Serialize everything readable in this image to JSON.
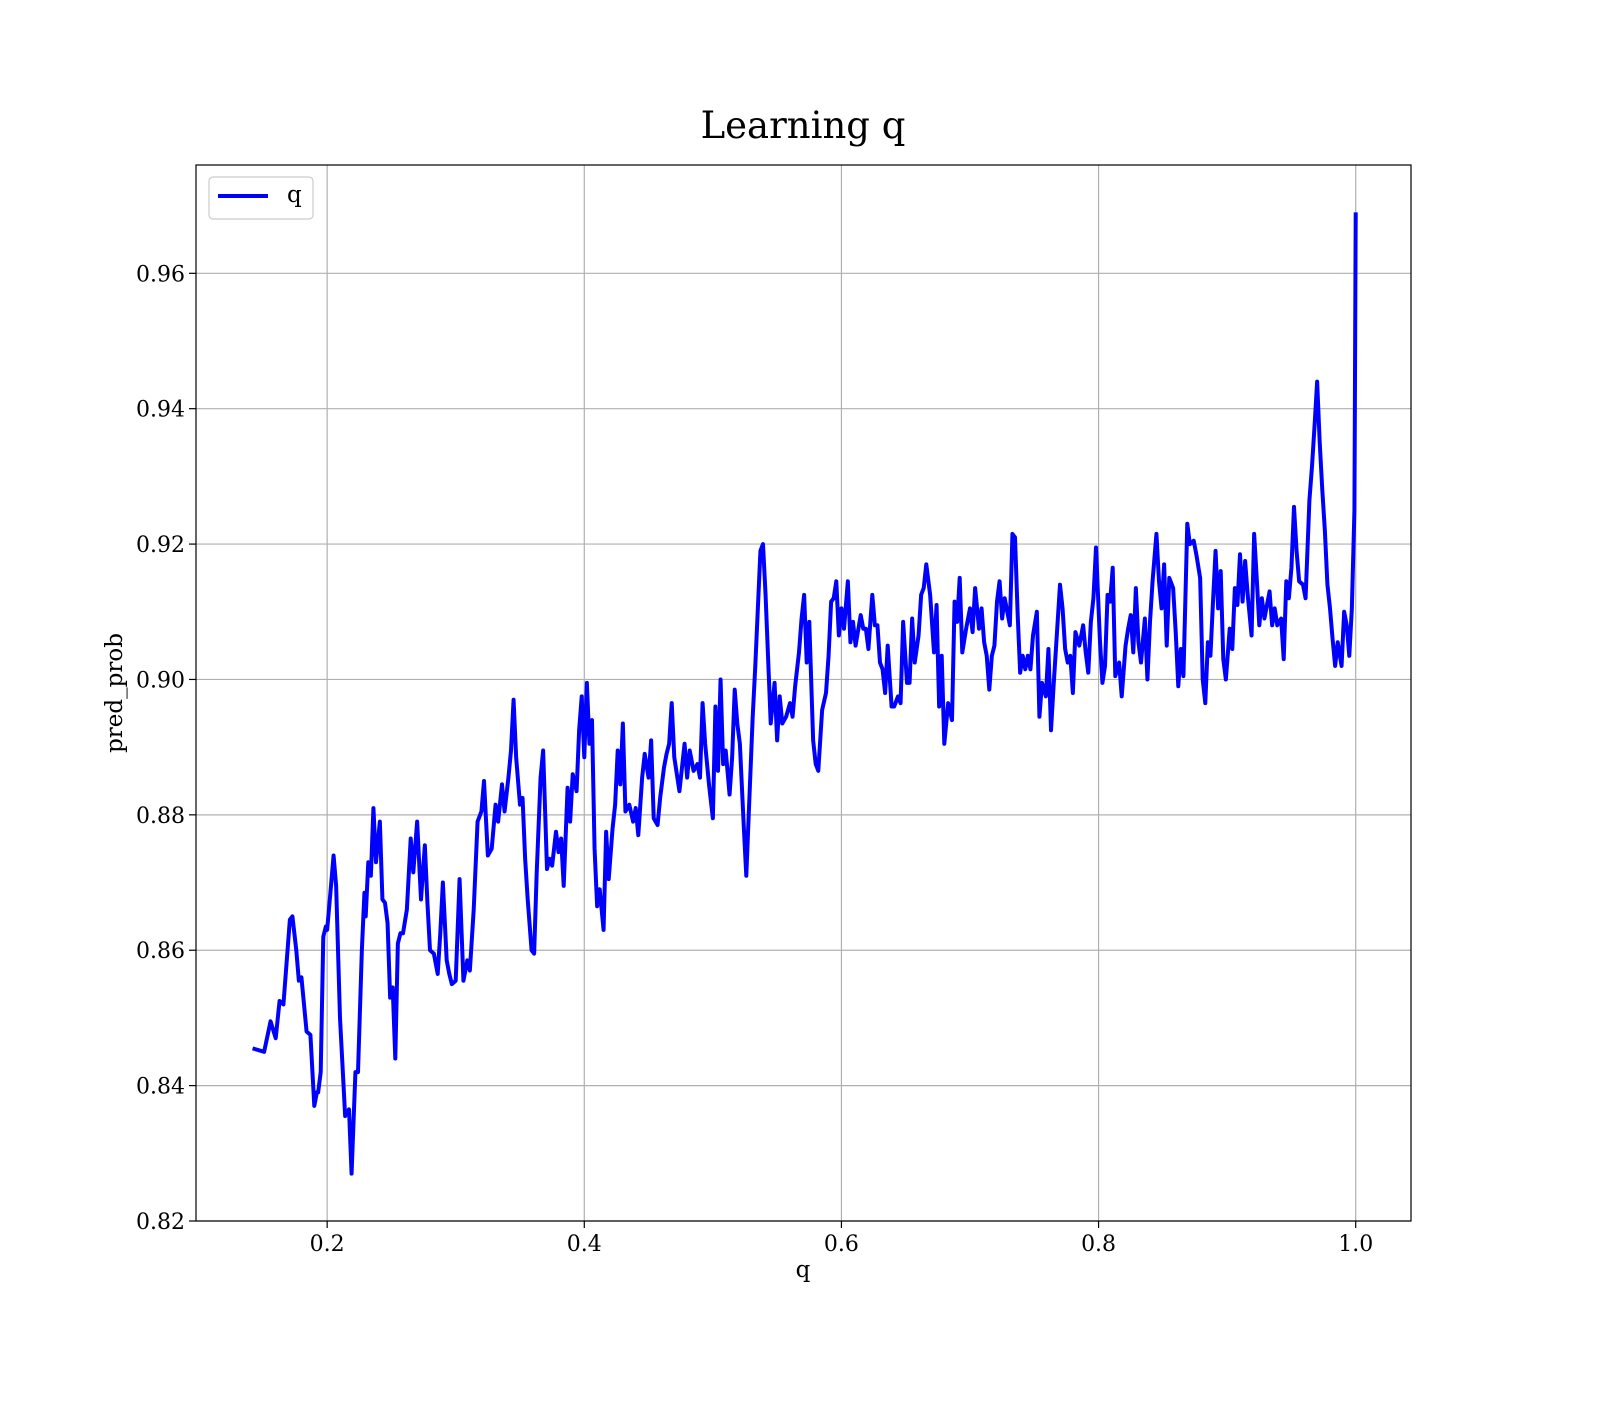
{
  "chart_data": {
    "type": "line",
    "title": "Learning q",
    "xlabel": "q",
    "ylabel": "pred_prob",
    "grid": true,
    "legend": "upper left",
    "xlim": [
      0.098,
      1.043
    ],
    "ylim": [
      0.82,
      0.976
    ],
    "xticks": [
      0.2,
      0.4,
      0.6,
      0.8,
      {
        "value": 1.0,
        "label": "1.0"
      }
    ],
    "yticks": [
      0.82,
      0.84,
      0.86,
      0.88,
      {
        "value": 0.9,
        "label": "0.90"
      },
      0.92,
      0.94,
      0.96
    ],
    "x": [
      0.142,
      0.151,
      0.156,
      0.16,
      0.163,
      0.166,
      0.171,
      0.173,
      0.176,
      0.178,
      0.18,
      0.184,
      0.187,
      0.19,
      0.192,
      0.193,
      0.195,
      0.197,
      0.199,
      0.2,
      0.203,
      0.205,
      0.207,
      0.21,
      0.214,
      0.217,
      0.219,
      0.222,
      0.224,
      0.227,
      0.229,
      0.23,
      0.232,
      0.234,
      0.236,
      0.238,
      0.241,
      0.243,
      0.245,
      0.247,
      0.249,
      0.251,
      0.253,
      0.255,
      0.257,
      0.259,
      0.262,
      0.265,
      0.267,
      0.27,
      0.273,
      0.276,
      0.278,
      0.28,
      0.283,
      0.286,
      0.288,
      0.29,
      0.293,
      0.295,
      0.297,
      0.3,
      0.303,
      0.306,
      0.309,
      0.311,
      0.314,
      0.317,
      0.32,
      0.322,
      0.325,
      0.328,
      0.331,
      0.333,
      0.336,
      0.338,
      0.341,
      0.343,
      0.345,
      0.347,
      0.35,
      0.352,
      0.354,
      0.356,
      0.359,
      0.361,
      0.363,
      0.366,
      0.368,
      0.371,
      0.373,
      0.375,
      0.378,
      0.38,
      0.382,
      0.384,
      0.387,
      0.389,
      0.391,
      0.394,
      0.396,
      0.398,
      0.4,
      0.402,
      0.404,
      0.406,
      0.408,
      0.41,
      0.412,
      0.415,
      0.417,
      0.419,
      0.422,
      0.424,
      0.426,
      0.428,
      0.43,
      0.432,
      0.435,
      0.438,
      0.44,
      0.442,
      0.445,
      0.447,
      0.45,
      0.452,
      0.454,
      0.457,
      0.459,
      0.462,
      0.464,
      0.466,
      0.468,
      0.47,
      0.474,
      0.476,
      0.478,
      0.48,
      0.482,
      0.485,
      0.488,
      0.49,
      0.492,
      0.494,
      0.497,
      0.5,
      0.502,
      0.504,
      0.506,
      0.508,
      0.51,
      0.513,
      0.515,
      0.517,
      0.519,
      0.521,
      0.524,
      0.526,
      0.528,
      0.531,
      0.533,
      0.537,
      0.539,
      0.541,
      0.543,
      0.545,
      0.548,
      0.55,
      0.552,
      0.554,
      0.557,
      0.56,
      0.562,
      0.564,
      0.567,
      0.569,
      0.571,
      0.573,
      0.575,
      0.578,
      0.58,
      0.582,
      0.585,
      0.588,
      0.59,
      0.592,
      0.594,
      0.596,
      0.598,
      0.6,
      0.602,
      0.605,
      0.607,
      0.609,
      0.611,
      0.615,
      0.617,
      0.619,
      0.621,
      0.624,
      0.626,
      0.628,
      0.63,
      0.632,
      0.634,
      0.636,
      0.639,
      0.641,
      0.644,
      0.646,
      0.648,
      0.651,
      0.653,
      0.655,
      0.657,
      0.66,
      0.662,
      0.664,
      0.666,
      0.669,
      0.672,
      0.674,
      0.676,
      0.678,
      0.68,
      0.683,
      0.686,
      0.688,
      0.69,
      0.692,
      0.694,
      0.697,
      0.7,
      0.702,
      0.704,
      0.707,
      0.709,
      0.711,
      0.713,
      0.715,
      0.717,
      0.719,
      0.721,
      0.723,
      0.725,
      0.727,
      0.731,
      0.733,
      0.735,
      0.737,
      0.739,
      0.741,
      0.743,
      0.745,
      0.747,
      0.749,
      0.752,
      0.754,
      0.756,
      0.759,
      0.761,
      0.763,
      0.765,
      0.768,
      0.77,
      0.772,
      0.774,
      0.776,
      0.778,
      0.78,
      0.782,
      0.785,
      0.788,
      0.79,
      0.792,
      0.794,
      0.796,
      0.798,
      0.801,
      0.803,
      0.805,
      0.807,
      0.809,
      0.811,
      0.813,
      0.816,
      0.818,
      0.821,
      0.823,
      0.825,
      0.827,
      0.829,
      0.831,
      0.833,
      0.836,
      0.838,
      0.84,
      0.842,
      0.845,
      0.847,
      0.849,
      0.851,
      0.853,
      0.855,
      0.858,
      0.86,
      0.862,
      0.864,
      0.866,
      0.869,
      0.871,
      0.874,
      0.876,
      0.879,
      0.881,
      0.883,
      0.885,
      0.887,
      0.889,
      0.891,
      0.893,
      0.895,
      0.897,
      0.899,
      0.902,
      0.904,
      0.906,
      0.908,
      0.91,
      0.912,
      0.914,
      0.916,
      0.919,
      0.921,
      0.923,
      0.925,
      0.927,
      0.929,
      0.933,
      0.935,
      0.937,
      0.939,
      0.942,
      0.944,
      0.946,
      0.948,
      0.95,
      0.952,
      0.954,
      0.956,
      0.959,
      0.961,
      0.964,
      0.966,
      0.968,
      0.97,
      0.972,
      0.974,
      0.976,
      0.978,
      0.98,
      0.982,
      0.984,
      0.986,
      0.989,
      0.991,
      0.993,
      0.995,
      0.997,
      0.999,
      1.0
    ],
    "series": [
      {
        "name": "q",
        "color": "#0000ff",
        "values": [
          0.8455,
          0.845,
          0.8495,
          0.847,
          0.8525,
          0.852,
          0.8645,
          0.865,
          0.86,
          0.8555,
          0.856,
          0.848,
          0.8475,
          0.837,
          0.839,
          0.839,
          0.842,
          0.862,
          0.8635,
          0.863,
          0.8695,
          0.874,
          0.8695,
          0.85,
          0.8355,
          0.8365,
          0.827,
          0.842,
          0.842,
          0.86,
          0.8685,
          0.865,
          0.873,
          0.871,
          0.881,
          0.873,
          0.879,
          0.8675,
          0.867,
          0.864,
          0.853,
          0.8545,
          0.844,
          0.861,
          0.8625,
          0.8625,
          0.866,
          0.8765,
          0.8715,
          0.879,
          0.8675,
          0.8755,
          0.867,
          0.86,
          0.8595,
          0.8565,
          0.8625,
          0.87,
          0.8585,
          0.8565,
          0.855,
          0.8555,
          0.8705,
          0.8555,
          0.8585,
          0.857,
          0.866,
          0.879,
          0.8805,
          0.885,
          0.874,
          0.875,
          0.8815,
          0.879,
          0.8845,
          0.8805,
          0.8855,
          0.8895,
          0.897,
          0.8885,
          0.8815,
          0.8825,
          0.8735,
          0.8675,
          0.86,
          0.8595,
          0.8715,
          0.8855,
          0.8895,
          0.872,
          0.8735,
          0.8725,
          0.8775,
          0.8745,
          0.8765,
          0.8695,
          0.884,
          0.879,
          0.886,
          0.8835,
          0.8925,
          0.8975,
          0.8885,
          0.8995,
          0.8905,
          0.894,
          0.875,
          0.8665,
          0.869,
          0.863,
          0.8775,
          0.8705,
          0.878,
          0.8815,
          0.8895,
          0.8845,
          0.8935,
          0.8805,
          0.8815,
          0.879,
          0.881,
          0.877,
          0.8855,
          0.889,
          0.8855,
          0.891,
          0.8795,
          0.8785,
          0.8825,
          0.887,
          0.889,
          0.8905,
          0.8965,
          0.8885,
          0.8835,
          0.887,
          0.8905,
          0.8855,
          0.8895,
          0.8865,
          0.8875,
          0.8855,
          0.8965,
          0.8905,
          0.8845,
          0.8795,
          0.896,
          0.8865,
          0.9,
          0.8875,
          0.8895,
          0.883,
          0.8885,
          0.8985,
          0.8935,
          0.8905,
          0.8785,
          0.871,
          0.8805,
          0.8945,
          0.902,
          0.919,
          0.92,
          0.9125,
          0.903,
          0.8935,
          0.8995,
          0.891,
          0.8975,
          0.8935,
          0.8945,
          0.8965,
          0.8945,
          0.899,
          0.904,
          0.909,
          0.9125,
          0.9025,
          0.9085,
          0.891,
          0.8875,
          0.8865,
          0.8955,
          0.898,
          0.9035,
          0.9115,
          0.912,
          0.9145,
          0.9065,
          0.9105,
          0.9075,
          0.9145,
          0.9055,
          0.9085,
          0.905,
          0.9095,
          0.9075,
          0.9075,
          0.9045,
          0.9125,
          0.908,
          0.908,
          0.9025,
          0.9015,
          0.898,
          0.905,
          0.896,
          0.896,
          0.8975,
          0.8965,
          0.9085,
          0.8995,
          0.8995,
          0.909,
          0.9025,
          0.9065,
          0.9125,
          0.9135,
          0.917,
          0.9125,
          0.904,
          0.911,
          0.896,
          0.9035,
          0.8905,
          0.8965,
          0.894,
          0.9115,
          0.9085,
          0.915,
          0.904,
          0.9075,
          0.9105,
          0.907,
          0.9135,
          0.9075,
          0.9105,
          0.9055,
          0.9035,
          0.8985,
          0.9035,
          0.905,
          0.9115,
          0.9145,
          0.909,
          0.912,
          0.908,
          0.9215,
          0.921,
          0.91,
          0.901,
          0.9035,
          0.9015,
          0.9035,
          0.9015,
          0.9065,
          0.91,
          0.8945,
          0.8995,
          0.8975,
          0.9045,
          0.8925,
          0.899,
          0.908,
          0.914,
          0.9105,
          0.9045,
          0.9025,
          0.9035,
          0.898,
          0.907,
          0.905,
          0.908,
          0.904,
          0.901,
          0.9085,
          0.912,
          0.9195,
          0.906,
          0.8995,
          0.902,
          0.9125,
          0.9115,
          0.9165,
          0.9005,
          0.9025,
          0.8975,
          0.905,
          0.9075,
          0.9095,
          0.904,
          0.9135,
          0.9055,
          0.9025,
          0.909,
          0.9,
          0.9085,
          0.9145,
          0.9215,
          0.9145,
          0.9105,
          0.917,
          0.905,
          0.915,
          0.9135,
          0.907,
          0.899,
          0.9045,
          0.9005,
          0.923,
          0.92,
          0.9205,
          0.9185,
          0.915,
          0.9,
          0.8965,
          0.9055,
          0.9035,
          0.9115,
          0.919,
          0.9105,
          0.916,
          0.903,
          0.9,
          0.9075,
          0.9045,
          0.9135,
          0.911,
          0.9185,
          0.9115,
          0.9175,
          0.9125,
          0.9065,
          0.9215,
          0.915,
          0.908,
          0.912,
          0.909,
          0.913,
          0.908,
          0.9105,
          0.908,
          0.909,
          0.903,
          0.9145,
          0.912,
          0.9165,
          0.9255,
          0.919,
          0.9145,
          0.914,
          0.912,
          0.9265,
          0.9315,
          0.9375,
          0.944,
          0.935,
          0.928,
          0.922,
          0.914,
          0.9105,
          0.906,
          0.902,
          0.9055,
          0.902,
          0.91,
          0.908,
          0.9035,
          0.9105,
          0.925,
          0.969
        ]
      }
    ]
  }
}
